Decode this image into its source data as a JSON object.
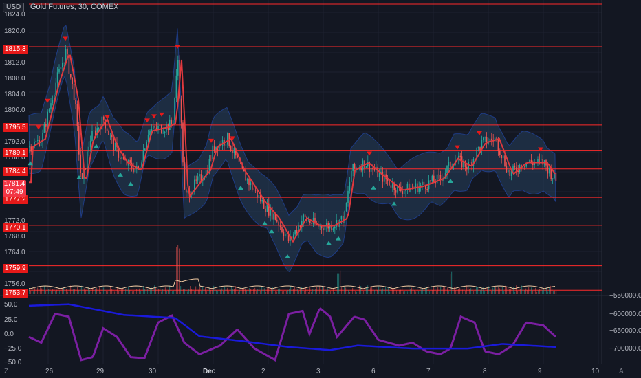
{
  "header": {
    "currency_button": "USD",
    "title": "Gold Futures, 30, COMEX"
  },
  "colors": {
    "background": "#131722",
    "level_line": "#ff2a2a",
    "band_fill": "#2a4a6a",
    "ma_line": "#e0393e",
    "osc_line": "#7b1fa2",
    "obv_line": "#1a1adb",
    "up": "#26a69a",
    "down": "#ef5350"
  },
  "price_axis": {
    "ticks": [
      "1824.0",
      "1820.0",
      "1812.0",
      "1808.0",
      "1804.0",
      "1800.0",
      "1792.0",
      "1788.0",
      "1777.2",
      "1772.0",
      "1768.0",
      "1764.0",
      "1756.0"
    ]
  },
  "levels": [
    "1815.3",
    "1795.5",
    "1789.1",
    "1784.4",
    "1777.2",
    "1770.1",
    "1759.9",
    "1753.7"
  ],
  "current_price": {
    "value": "1781.4",
    "countdown": "07:49"
  },
  "oscillator_axis": {
    "ticks": [
      "50.0",
      "25.0",
      "0.0",
      "−25.0",
      "−50.0"
    ]
  },
  "obv_axis": {
    "ticks": [
      "−550000.0",
      "−600000.0",
      "−650000.0",
      "−700000.0"
    ]
  },
  "time_axis": {
    "ticks": [
      "26",
      "29",
      "30",
      "Dec",
      "2",
      "3",
      "6",
      "7",
      "8",
      "9",
      "10"
    ]
  },
  "corner_left": "Z",
  "corner_right": "A",
  "chart_data": {
    "type": "candlestick",
    "title": "Gold Futures, 30, COMEX",
    "ylim": [
      1752,
      1826
    ],
    "horizontal_levels": [
      1815.3,
      1795.5,
      1789.1,
      1784.4,
      1777.2,
      1770.1,
      1759.9,
      1753.7
    ],
    "current_price": 1781.4,
    "sessions": [
      "26",
      "29",
      "30",
      "Dec",
      "2",
      "3",
      "6",
      "7",
      "8",
      "9"
    ],
    "oscillator": {
      "ylim": [
        -55,
        60
      ]
    },
    "obv": {
      "ylim": [
        -720000,
        -540000
      ]
    }
  }
}
